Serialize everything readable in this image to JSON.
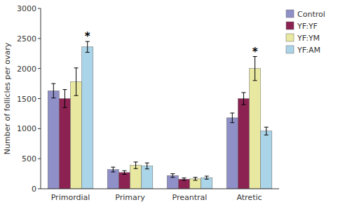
{
  "chart_data": {
    "type": "bar",
    "categories": [
      "Primordial",
      "Primary",
      "Preantral",
      "Atretic"
    ],
    "series": [
      {
        "name": "Control",
        "color": "#9090c8",
        "values": [
          1630,
          320,
          220,
          1180
        ],
        "errors": [
          120,
          40,
          30,
          80
        ]
      },
      {
        "name": "YF:YF",
        "color": "#8b2252",
        "values": [
          1500,
          270,
          160,
          1500
        ],
        "errors": [
          150,
          30,
          20,
          100
        ]
      },
      {
        "name": "YF:YM",
        "color": "#e8e8a0",
        "values": [
          1780,
          390,
          165,
          2000
        ],
        "errors": [
          230,
          55,
          25,
          200
        ]
      },
      {
        "name": "YF:AM",
        "color": "#aad4e8",
        "values": [
          2360,
          380,
          185,
          960
        ],
        "errors": [
          90,
          50,
          25,
          65
        ]
      }
    ],
    "ylabel": "Number of follicles per ovary",
    "ylim": [
      0,
      3000
    ],
    "yticks": [
      0,
      500,
      1000,
      1500,
      2000,
      2500,
      3000
    ],
    "legend": "upper right",
    "grid": false,
    "annotations": [
      {
        "text": "*",
        "category": 0,
        "series": 3
      },
      {
        "text": "*",
        "category": 3,
        "series": 2
      }
    ]
  }
}
